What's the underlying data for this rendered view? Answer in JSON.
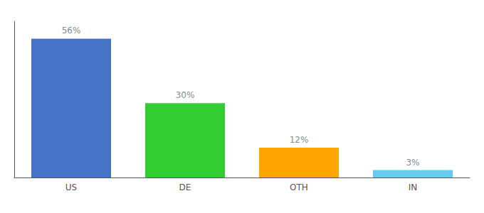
{
  "chart_data": {
    "type": "bar",
    "categories": [
      "US",
      "DE",
      "OTH",
      "IN"
    ],
    "values": [
      56,
      30,
      12,
      3
    ],
    "value_labels": [
      "56%",
      "30%",
      "12%",
      "3%"
    ],
    "data_labels": true,
    "colors": [
      "#4472C4",
      "#33CC33",
      "#FFA500",
      "#66CCEE"
    ],
    "ylim": [
      0,
      63
    ],
    "grid": false,
    "tick_labels": "x"
  }
}
